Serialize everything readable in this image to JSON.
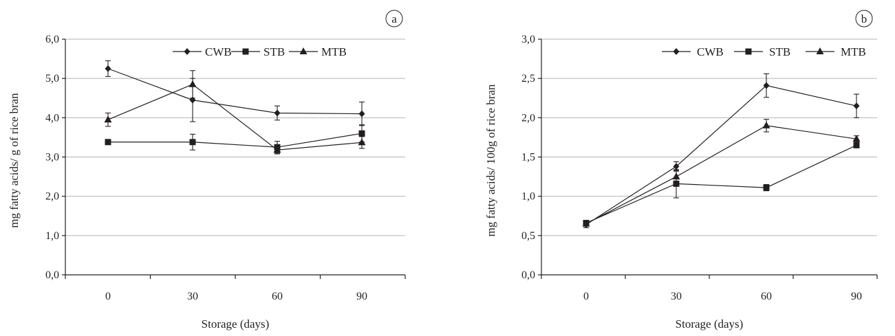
{
  "chart_data": [
    {
      "type": "line",
      "panel_label": "a",
      "xlabel": "Storage (days)",
      "ylabel": "mg fatty acids/ g of rice bran",
      "categories": [
        "0",
        "30",
        "60",
        "90"
      ],
      "ylim": [
        0,
        6
      ],
      "yticks": [
        "0,0",
        "1,0",
        "2,0",
        "3,0",
        "4,0",
        "5,0",
        "6,0"
      ],
      "grid": true,
      "legend_position": "top-right",
      "series": [
        {
          "name": "CWB",
          "marker": "diamond",
          "values": [
            5.25,
            4.45,
            4.12,
            4.1
          ],
          "errors": [
            0.2,
            0.55,
            0.18,
            0.3
          ]
        },
        {
          "name": "STB",
          "marker": "square",
          "values": [
            3.38,
            3.38,
            3.25,
            3.6
          ],
          "errors": [
            0.06,
            0.2,
            0.15,
            0.22
          ]
        },
        {
          "name": "MTB",
          "marker": "triangle",
          "values": [
            3.95,
            4.85,
            3.18,
            3.37
          ],
          "errors": [
            0.17,
            0.35,
            0.1,
            0.15
          ]
        }
      ]
    },
    {
      "type": "line",
      "panel_label": "b",
      "xlabel": "Storage (days)",
      "ylabel": "mg fatty acids/ 100g of rice bran",
      "categories": [
        "0",
        "30",
        "60",
        "90"
      ],
      "ylim": [
        0,
        3
      ],
      "yticks": [
        "0,0",
        "0,5",
        "1,0",
        "1,5",
        "2,0",
        "2,5",
        "3,0"
      ],
      "grid": true,
      "legend_position": "top-right",
      "series": [
        {
          "name": "CWB",
          "marker": "diamond",
          "values": [
            0.64,
            1.38,
            2.41,
            2.15
          ],
          "errors": [
            0.04,
            0.06,
            0.15,
            0.15
          ]
        },
        {
          "name": "STB",
          "marker": "square",
          "values": [
            0.66,
            1.16,
            1.11,
            1.65
          ],
          "errors": [
            0.03,
            0.18,
            0.04,
            0.03
          ]
        },
        {
          "name": "MTB",
          "marker": "triangle",
          "values": [
            0.65,
            1.25,
            1.9,
            1.73
          ],
          "errors": [
            0.03,
            0.08,
            0.08,
            0.04
          ]
        }
      ]
    }
  ]
}
